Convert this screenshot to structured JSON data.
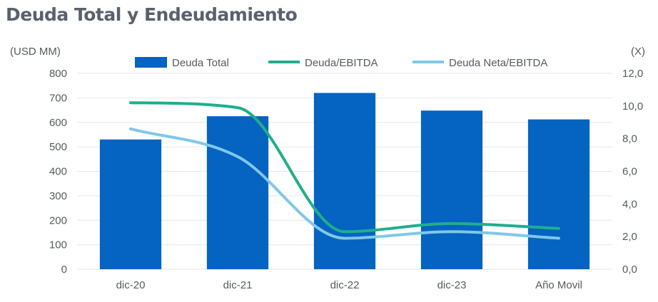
{
  "chart_data": {
    "type": "bar",
    "title": "Deuda Total y Endeudamiento",
    "categories": [
      "dic-20",
      "dic-21",
      "dic-22",
      "dic-23",
      "Año Movil"
    ],
    "y_left": {
      "label": "(USD MM)",
      "range": [
        0,
        800
      ],
      "ticks": [
        "0",
        "100",
        "200",
        "300",
        "400",
        "500",
        "600",
        "700",
        "800"
      ]
    },
    "y_right": {
      "label": "(X)",
      "range": [
        0,
        12
      ],
      "ticks": [
        "0,0",
        "2,0",
        "4,0",
        "6,0",
        "8,0",
        "10,0",
        "12,0"
      ]
    },
    "series": [
      {
        "name": "Deuda Total",
        "type": "bar",
        "axis": "left",
        "color": "#0563c1",
        "values": [
          530,
          625,
          720,
          648,
          612
        ]
      },
      {
        "name": "Deuda/EBITDA",
        "type": "line",
        "axis": "right",
        "color": "#1fae8c",
        "values": [
          10.2,
          9.9,
          2.3,
          2.8,
          2.5
        ]
      },
      {
        "name": "Deuda Neta/EBITDA",
        "type": "line",
        "axis": "right",
        "color": "#7ec8ea",
        "values": [
          8.6,
          6.9,
          1.9,
          2.3,
          1.9
        ]
      }
    ],
    "grid": true,
    "legend": "top"
  }
}
